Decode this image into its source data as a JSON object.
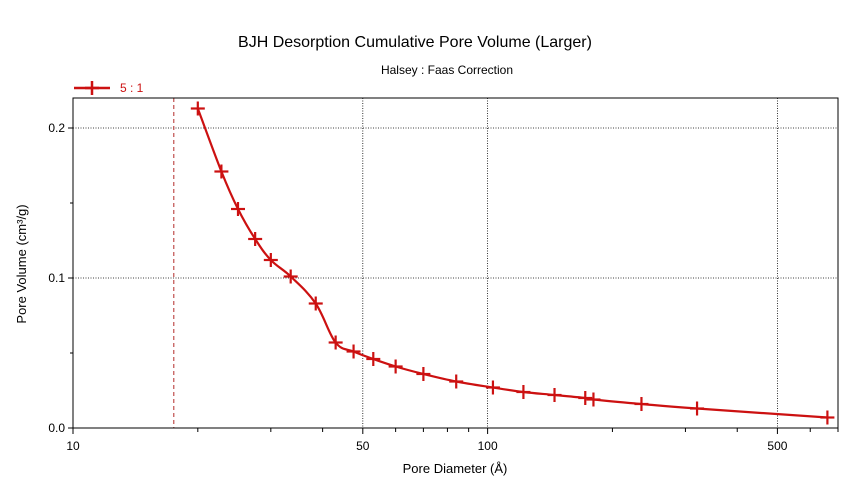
{
  "chart_data": {
    "type": "line",
    "title": "BJH Desorption Cumulative Pore Volume (Larger)",
    "subtitle": "Halsey : Faas Correction",
    "xlabel": "Pore Diameter (Å)",
    "ylabel": "Pore Volume (cm³/g)",
    "x_scale": "log",
    "xlim": [
      10,
      700
    ],
    "ylim": [
      0,
      0.22
    ],
    "x_ticks": [
      {
        "value": 10,
        "label": "10"
      },
      {
        "value": 50,
        "label": "50"
      },
      {
        "value": 100,
        "label": "100"
      },
      {
        "value": 500,
        "label": "500"
      }
    ],
    "y_ticks": [
      {
        "value": 0.0,
        "label": "0.0"
      },
      {
        "value": 0.1,
        "label": "0.1"
      },
      {
        "value": 0.2,
        "label": "0.2"
      }
    ],
    "x_gridlines": [
      50,
      100,
      500
    ],
    "y_gridlines": [
      0.1,
      0.2
    ],
    "reference_line_x": 17.5,
    "legend_placement": "top-left",
    "series": [
      {
        "name": "5 : 1",
        "color": "#cc1111",
        "marker": "plus",
        "x": [
          20.0,
          22.8,
          25.0,
          27.5,
          30.0,
          33.5,
          38.5,
          43.0,
          47.5,
          53.0,
          60.0,
          70.0,
          84.0,
          103.0,
          122.0,
          145.0,
          172.0,
          180.0,
          235.0,
          320.0,
          660.0
        ],
        "y": [
          0.213,
          0.171,
          0.146,
          0.126,
          0.112,
          0.101,
          0.083,
          0.057,
          0.051,
          0.046,
          0.041,
          0.036,
          0.031,
          0.027,
          0.024,
          0.022,
          0.02,
          0.019,
          0.016,
          0.013,
          0.007
        ]
      }
    ]
  }
}
